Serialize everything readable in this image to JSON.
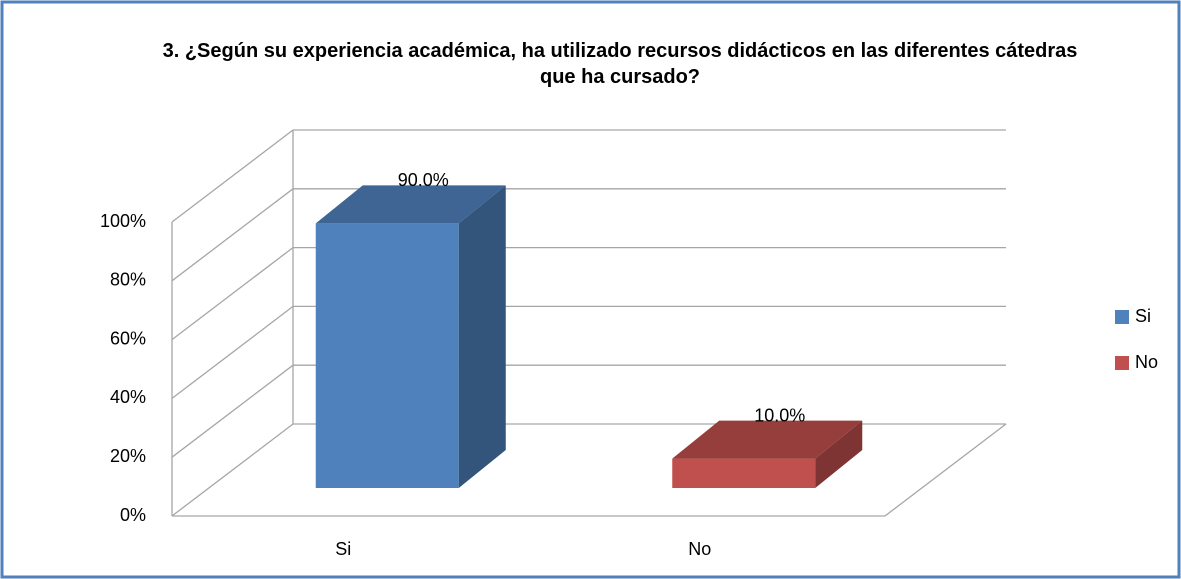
{
  "chart_data": {
    "type": "bar3d",
    "title": "3. ¿Según su experiencia académica, ha utilizado recursos didácticos en las diferentes cátedras que ha cursado?",
    "categories": [
      "Si",
      "No"
    ],
    "values": [
      90,
      10
    ],
    "value_labels": [
      "90.0%",
      "10.0%"
    ],
    "colors": [
      "#4f81bd",
      "#c0504d"
    ],
    "ylim": [
      0,
      100
    ],
    "yticks": [
      {
        "value": 0,
        "label": "0%"
      },
      {
        "value": 20,
        "label": "20%"
      },
      {
        "value": 40,
        "label": "40%"
      },
      {
        "value": 60,
        "label": "60%"
      },
      {
        "value": 80,
        "label": "80%"
      },
      {
        "value": 100,
        "label": "100%"
      }
    ],
    "grid": true,
    "legend": "right"
  }
}
